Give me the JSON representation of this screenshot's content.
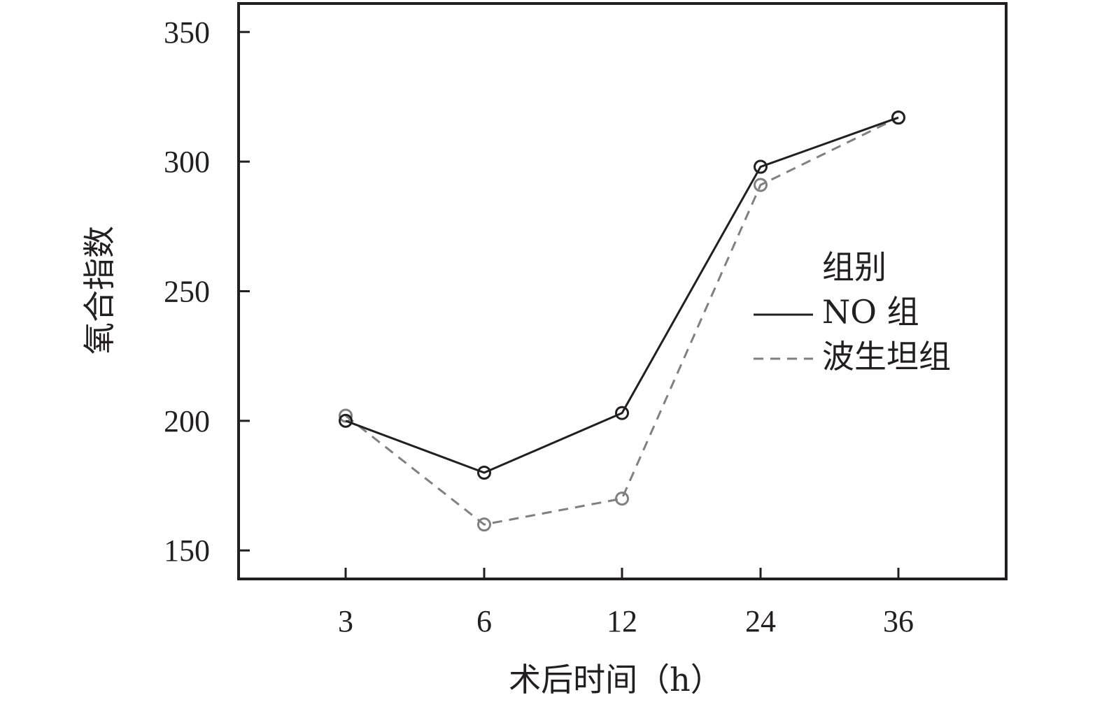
{
  "chart_data": {
    "type": "line",
    "categories": [
      "3",
      "6",
      "12",
      "24",
      "36"
    ],
    "series": [
      {
        "name": "NO 组",
        "values": [
          200,
          180,
          203,
          298,
          317
        ],
        "color": "#231f20",
        "dash": "solid"
      },
      {
        "name": "波生坦组",
        "values": [
          202,
          160,
          170,
          291,
          317
        ],
        "color": "#808080",
        "dash": "dashed"
      }
    ],
    "xlabel": "术后时间（h）",
    "ylabel": "氧合指数",
    "ylim": [
      139,
      361
    ],
    "yticks": [
      150,
      200,
      250,
      300,
      350
    ],
    "legend_title": "组别",
    "legend_position": "right",
    "grid": false
  }
}
